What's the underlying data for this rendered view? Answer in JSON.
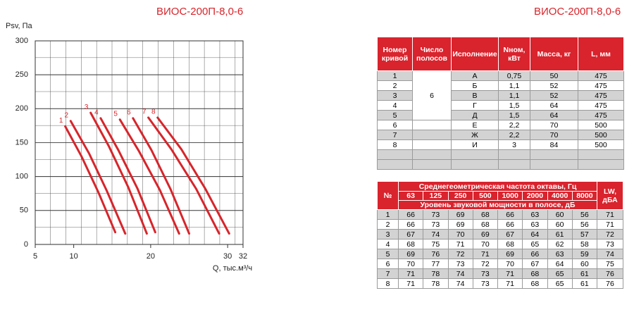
{
  "chart_data": {
    "type": "line",
    "title": "ВИОС-200П-8,0-6",
    "y_label": "Psv, Па",
    "x_label": "Q, тыс.м³/ч",
    "xlim": [
      5,
      32
    ],
    "xticks": [
      5,
      10,
      20,
      30,
      32
    ],
    "ylim": [
      0,
      300
    ],
    "yticks": [
      0,
      50,
      100,
      150,
      200,
      250,
      300
    ],
    "grid": true,
    "series": [
      {
        "name": "1",
        "color": "#d7252b",
        "x": [
          8.9,
          11.0,
          13.2,
          15.4
        ],
        "values": [
          174,
          130,
          77,
          18
        ]
      },
      {
        "name": "2",
        "color": "#d7252b",
        "x": [
          9.6,
          12.0,
          14.3,
          16.7
        ],
        "values": [
          182,
          134,
          79,
          16
        ]
      },
      {
        "name": "3",
        "color": "#d7252b",
        "x": [
          12.2,
          14.6,
          17.1,
          19.5
        ],
        "values": [
          194,
          144,
          84,
          16
        ]
      },
      {
        "name": "4",
        "color": "#d7252b",
        "x": [
          13.5,
          15.8,
          18.3,
          20.6
        ],
        "values": [
          186,
          139,
          82,
          18
        ]
      },
      {
        "name": "5",
        "color": "#d7252b",
        "x": [
          16.0,
          18.5,
          21.2,
          23.7
        ],
        "values": [
          184,
          137,
          80,
          16
        ]
      },
      {
        "name": "6",
        "color": "#d7252b",
        "x": [
          17.7,
          20.1,
          22.6,
          25.0
        ],
        "values": [
          186,
          139,
          81,
          16
        ]
      },
      {
        "name": "7",
        "color": "#d7252b",
        "x": [
          19.7,
          22.7,
          25.9,
          28.9
        ],
        "values": [
          187,
          140,
          82,
          16
        ]
      },
      {
        "name": "8",
        "color": "#d7252b",
        "x": [
          20.9,
          24.0,
          27.1,
          30.2
        ],
        "values": [
          187,
          140,
          82,
          16
        ]
      }
    ]
  },
  "title_right": "ВИОС-200П-8,0-6",
  "table1": {
    "headers": [
      "Номер кривой",
      "Число полосов",
      "Исполнение",
      "Nном, кВт",
      "Масса, кг",
      "L, мм"
    ],
    "poles": "6",
    "rows": [
      [
        "1",
        "А",
        "0,75",
        "50",
        "475"
      ],
      [
        "2",
        "Б",
        "1,1",
        "52",
        "475"
      ],
      [
        "3",
        "В",
        "1,1",
        "52",
        "475"
      ],
      [
        "4",
        "Г",
        "1,5",
        "64",
        "475"
      ],
      [
        "5",
        "Д",
        "1,5",
        "64",
        "475"
      ],
      [
        "6",
        "Е",
        "2,2",
        "70",
        "500"
      ],
      [
        "7",
        "Ж",
        "2,2",
        "70",
        "500"
      ],
      [
        "8",
        "И",
        "3",
        "84",
        "500"
      ]
    ]
  },
  "table2": {
    "number": "№",
    "freq_title": "Среднегеометрическая частота октавы, Гц",
    "freqs": [
      "63",
      "125",
      "250",
      "500",
      "1000",
      "2000",
      "4000",
      "8000"
    ],
    "level_title": "Уровень звуковой мощности в полосе, дБ",
    "lw": "LW, дБА",
    "rows": [
      [
        "1",
        "66",
        "73",
        "69",
        "68",
        "66",
        "63",
        "60",
        "56",
        "71"
      ],
      [
        "2",
        "66",
        "73",
        "69",
        "68",
        "66",
        "63",
        "60",
        "56",
        "71"
      ],
      [
        "3",
        "67",
        "74",
        "70",
        "69",
        "67",
        "64",
        "61",
        "57",
        "72"
      ],
      [
        "4",
        "68",
        "75",
        "71",
        "70",
        "68",
        "65",
        "62",
        "58",
        "73"
      ],
      [
        "5",
        "69",
        "76",
        "72",
        "71",
        "69",
        "66",
        "63",
        "59",
        "74"
      ],
      [
        "6",
        "70",
        "77",
        "73",
        "72",
        "70",
        "67",
        "64",
        "60",
        "75"
      ],
      [
        "7",
        "71",
        "78",
        "74",
        "73",
        "71",
        "68",
        "65",
        "61",
        "76"
      ],
      [
        "8",
        "71",
        "78",
        "74",
        "73",
        "71",
        "68",
        "65",
        "61",
        "76"
      ]
    ]
  }
}
